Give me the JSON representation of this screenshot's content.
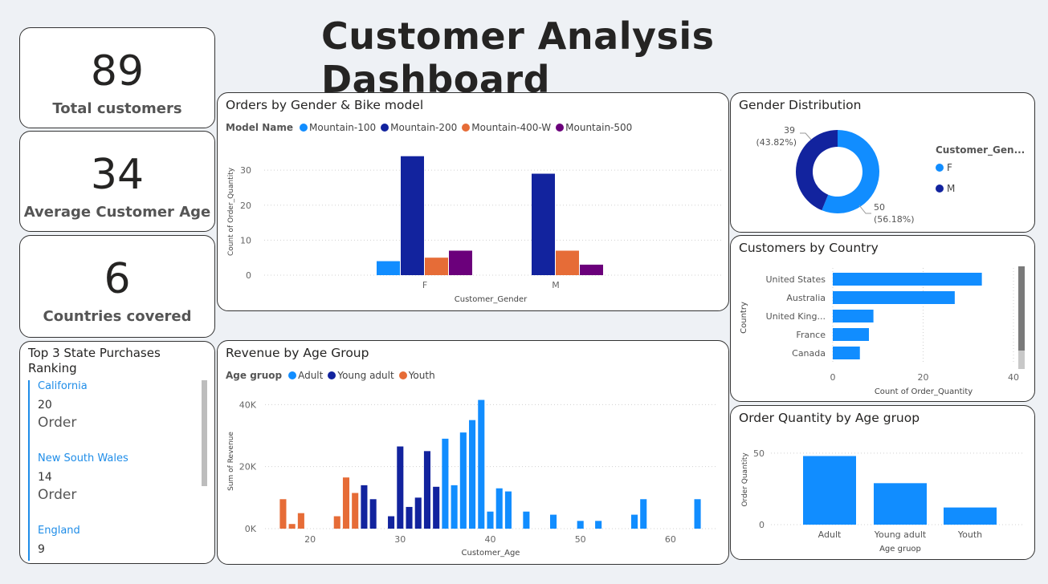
{
  "header": {
    "title": "Customer Analysis Dashboard"
  },
  "kpis": [
    {
      "value": "89",
      "label": "Total customers"
    },
    {
      "value": "34",
      "label": "Average Customer Age"
    },
    {
      "value": "6",
      "label": "Countries covered"
    }
  ],
  "colors": {
    "mountain100": "#118dff",
    "mountain200": "#12239e",
    "mountain400w": "#e66c37",
    "mountain500": "#6b007b",
    "adult": "#118dff",
    "young_adult": "#12239e",
    "youth": "#e66c37"
  },
  "states_panel": {
    "title_line1": "Top 3 State Purchases",
    "title_line2": "Ranking",
    "items": [
      {
        "name": "California",
        "value": "20",
        "unit": "Order"
      },
      {
        "name": "New South Wales",
        "value": "14",
        "unit": "Order"
      },
      {
        "name": "England",
        "value": "9",
        "unit": ""
      }
    ]
  },
  "chart_data": [
    {
      "id": "orders_gender_model",
      "type": "bar",
      "title": "Orders by Gender & Bike model",
      "legend_title": "Model Name",
      "categories": [
        "F",
        "M"
      ],
      "series": [
        {
          "name": "Mountain-100",
          "values": [
            4,
            0
          ]
        },
        {
          "name": "Mountain-200",
          "values": [
            34,
            29
          ]
        },
        {
          "name": "Mountain-400-W",
          "values": [
            5,
            7
          ]
        },
        {
          "name": "Mountain-500",
          "values": [
            7,
            3
          ]
        }
      ],
      "xlabel": "Customer_Gender",
      "ylabel": "Count of Order_Quantity",
      "ylim": [
        0,
        36
      ],
      "yticks": [
        "0",
        "10",
        "20",
        "30"
      ]
    },
    {
      "id": "gender_distribution",
      "type": "pie",
      "title": "Gender Distribution",
      "legend_title": "Customer_Gen...",
      "slices": [
        {
          "name": "F",
          "value": 50,
          "label": "50",
          "pct": "(56.18%)"
        },
        {
          "name": "M",
          "value": 39,
          "label": "39",
          "pct": "(43.82%)"
        }
      ]
    },
    {
      "id": "customers_country",
      "type": "bar",
      "orientation": "horizontal",
      "title": "Customers by Country",
      "categories": [
        "United States",
        "Australia",
        "United King...",
        "France",
        "Canada"
      ],
      "values": [
        33,
        27,
        9,
        8,
        6
      ],
      "xlabel": "Count of Order_Quantity",
      "ylabel": "Country",
      "xlim": [
        0,
        40
      ],
      "xticks": [
        "0",
        "20",
        "40"
      ]
    },
    {
      "id": "revenue_age_group",
      "type": "bar",
      "title": "Revenue by Age Group",
      "legend_title": "Age gruop",
      "series_names": [
        "Adult",
        "Young adult",
        "Youth"
      ],
      "xlabel": "Customer_Age",
      "ylabel": "Sum of Revenue",
      "xlim": [
        15,
        65
      ],
      "ylim": [
        0,
        45000
      ],
      "xticks": [
        "20",
        "30",
        "40",
        "50",
        "60"
      ],
      "yticks": [
        "0K",
        "20K",
        "40K"
      ],
      "points": [
        {
          "age": 17,
          "value": 9500,
          "group": "Youth"
        },
        {
          "age": 18,
          "value": 1500,
          "group": "Youth"
        },
        {
          "age": 19,
          "value": 5000,
          "group": "Youth"
        },
        {
          "age": 23,
          "value": 4000,
          "group": "Youth"
        },
        {
          "age": 24,
          "value": 16500,
          "group": "Youth"
        },
        {
          "age": 25,
          "value": 11500,
          "group": "Youth"
        },
        {
          "age": 26,
          "value": 14000,
          "group": "Young adult"
        },
        {
          "age": 27,
          "value": 9500,
          "group": "Young adult"
        },
        {
          "age": 29,
          "value": 4000,
          "group": "Young adult"
        },
        {
          "age": 30,
          "value": 26500,
          "group": "Young adult"
        },
        {
          "age": 31,
          "value": 7000,
          "group": "Young adult"
        },
        {
          "age": 32,
          "value": 10000,
          "group": "Young adult"
        },
        {
          "age": 33,
          "value": 25000,
          "group": "Young adult"
        },
        {
          "age": 34,
          "value": 13500,
          "group": "Young adult"
        },
        {
          "age": 35,
          "value": 29000,
          "group": "Adult"
        },
        {
          "age": 36,
          "value": 14000,
          "group": "Adult"
        },
        {
          "age": 37,
          "value": 31000,
          "group": "Adult"
        },
        {
          "age": 38,
          "value": 35000,
          "group": "Adult"
        },
        {
          "age": 39,
          "value": 41500,
          "group": "Adult"
        },
        {
          "age": 40,
          "value": 5500,
          "group": "Adult"
        },
        {
          "age": 41,
          "value": 13000,
          "group": "Adult"
        },
        {
          "age": 42,
          "value": 12000,
          "group": "Adult"
        },
        {
          "age": 44,
          "value": 5500,
          "group": "Adult"
        },
        {
          "age": 47,
          "value": 4500,
          "group": "Adult"
        },
        {
          "age": 50,
          "value": 2500,
          "group": "Adult"
        },
        {
          "age": 52,
          "value": 2500,
          "group": "Adult"
        },
        {
          "age": 56,
          "value": 4500,
          "group": "Adult"
        },
        {
          "age": 57,
          "value": 9500,
          "group": "Adult"
        },
        {
          "age": 63,
          "value": 9500,
          "group": "Adult"
        }
      ]
    },
    {
      "id": "order_qty_age_group",
      "type": "bar",
      "title": "Order Quantity by Age gruop",
      "categories": [
        "Adult",
        "Young adult",
        "Youth"
      ],
      "values": [
        48,
        29,
        12
      ],
      "xlabel": "Age gruop",
      "ylabel": "Order Quantity",
      "ylim": [
        0,
        55
      ],
      "yticks": [
        "0",
        "50"
      ]
    }
  ]
}
